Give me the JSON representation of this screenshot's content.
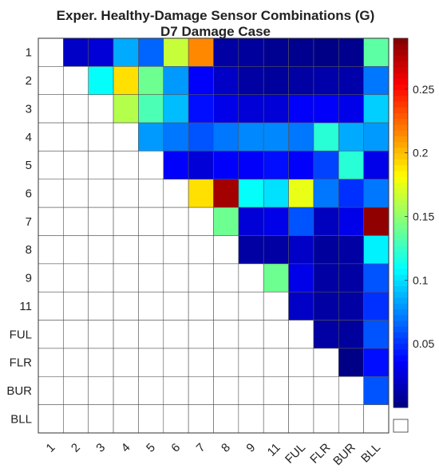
{
  "chart_data": {
    "type": "heatmap",
    "title": "Exper. Healthy-Damage Sensor Combinations (G)",
    "subtitle": "D7 Damage Case",
    "row_labels": [
      "1",
      "2",
      "3",
      "4",
      "5",
      "6",
      "7",
      "8",
      "9",
      "11",
      "FUL",
      "FLR",
      "BUR",
      "BLL"
    ],
    "col_labels": [
      "1",
      "2",
      "3",
      "4",
      "5",
      "6",
      "7",
      "8",
      "9",
      "11",
      "FUL",
      "FLR",
      "BUR",
      "BLL"
    ],
    "values": [
      [
        null,
        0.02,
        0.025,
        0.085,
        0.065,
        0.165,
        0.215,
        0.01,
        0.008,
        0.005,
        0.004,
        0.002,
        0.004,
        0.135
      ],
      [
        null,
        null,
        0.11,
        0.19,
        0.14,
        0.08,
        0.035,
        0.02,
        0.01,
        0.008,
        0.01,
        0.012,
        0.012,
        0.07
      ],
      [
        null,
        null,
        null,
        0.16,
        0.13,
        0.09,
        0.04,
        0.03,
        0.025,
        0.025,
        0.035,
        0.035,
        0.03,
        0.095
      ],
      [
        null,
        null,
        null,
        null,
        0.08,
        0.07,
        0.06,
        0.07,
        0.075,
        0.075,
        0.07,
        0.12,
        0.085,
        0.08
      ],
      [
        null,
        null,
        null,
        null,
        null,
        0.035,
        0.025,
        0.035,
        0.035,
        0.04,
        0.035,
        0.055,
        0.12,
        0.03
      ],
      [
        null,
        null,
        null,
        null,
        null,
        null,
        0.19,
        0.28,
        0.11,
        0.1,
        0.175,
        0.07,
        0.05,
        0.07
      ],
      [
        null,
        null,
        null,
        null,
        null,
        null,
        null,
        0.14,
        0.025,
        0.03,
        0.06,
        0.018,
        0.03,
        0.285
      ],
      [
        null,
        null,
        null,
        null,
        null,
        null,
        null,
        null,
        0.01,
        0.01,
        0.02,
        0.008,
        0.01,
        0.105
      ],
      [
        null,
        null,
        null,
        null,
        null,
        null,
        null,
        null,
        null,
        0.14,
        0.03,
        0.01,
        0.01,
        0.06
      ],
      [
        null,
        null,
        null,
        null,
        null,
        null,
        null,
        null,
        null,
        null,
        0.02,
        0.01,
        0.01,
        0.05
      ],
      [
        null,
        null,
        null,
        null,
        null,
        null,
        null,
        null,
        null,
        null,
        null,
        0.01,
        0.008,
        0.06
      ],
      [
        null,
        null,
        null,
        null,
        null,
        null,
        null,
        null,
        null,
        null,
        null,
        null,
        0.002,
        0.04
      ],
      [
        null,
        null,
        null,
        null,
        null,
        null,
        null,
        null,
        null,
        null,
        null,
        null,
        null,
        0.06
      ],
      [
        null,
        null,
        null,
        null,
        null,
        null,
        null,
        null,
        null,
        null,
        null,
        null,
        null,
        null
      ]
    ],
    "colormap": "jet",
    "clim": [
      0,
      0.29
    ],
    "colorbar_ticks": [
      0.05,
      0.1,
      0.15,
      0.2,
      0.25
    ],
    "colorbar_tick_labels": [
      "0.05",
      "0.1",
      "0.15",
      "0.2",
      "0.25"
    ],
    "empty_cell_color": "#ffffff",
    "grid": true
  }
}
